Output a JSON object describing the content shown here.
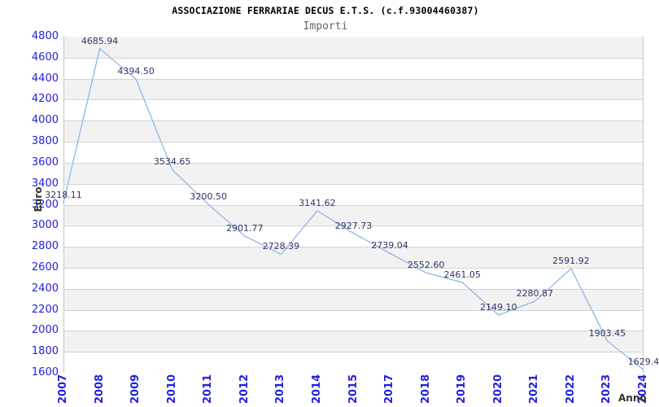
{
  "chart_data": {
    "type": "line",
    "title": "ASSOCIAZIONE FERRARIAE DECUS E.T.S. (c.f.93004460387)",
    "subtitle": "Importi",
    "xlabel": "Anno",
    "ylabel": "Euro",
    "categories": [
      "2007",
      "2008",
      "2009",
      "2010",
      "2011",
      "2012",
      "2013",
      "2014",
      "2015",
      "2017",
      "2018",
      "2019",
      "2020",
      "2021",
      "2022",
      "2023",
      "2024"
    ],
    "values": [
      3218.11,
      4685.94,
      4394.5,
      3534.65,
      3200.5,
      2901.77,
      2728.39,
      3141.62,
      2927.73,
      2739.04,
      2552.6,
      2461.05,
      2149.1,
      2280.87,
      2591.92,
      1903.45,
      1629.4
    ],
    "point_labels": [
      "3218.11",
      "4685.94",
      "4394.50",
      "3534.65",
      "3200.50",
      "2901.77",
      "2728.39",
      "3141.62",
      "2927.73",
      "2739.04",
      "2552.60",
      "2461.05",
      "2149.10",
      "2280.87",
      "2591.92",
      "1903.45",
      "1629.4"
    ],
    "ylim": [
      1600,
      4800
    ],
    "ytick_step": 200,
    "ytick_labels": [
      "1600",
      "1800",
      "2000",
      "2200",
      "2400",
      "2600",
      "2800",
      "3000",
      "3200",
      "3400",
      "3600",
      "3800",
      "4000",
      "4200",
      "4400",
      "4600",
      "4800"
    ],
    "grid": true,
    "legend": "none"
  },
  "colors": {
    "line": "#8cb8e8",
    "tick_label": "#2222dd",
    "point_label": "#333366",
    "band_gray": "#f2f2f2",
    "band_white": "#ffffff",
    "gridline": "#d4d4d4",
    "plot_border": "#c6c6c6",
    "title": "#000000",
    "subtitle": "#666666",
    "axis_title": "#333333",
    "background": "#ffffff"
  }
}
